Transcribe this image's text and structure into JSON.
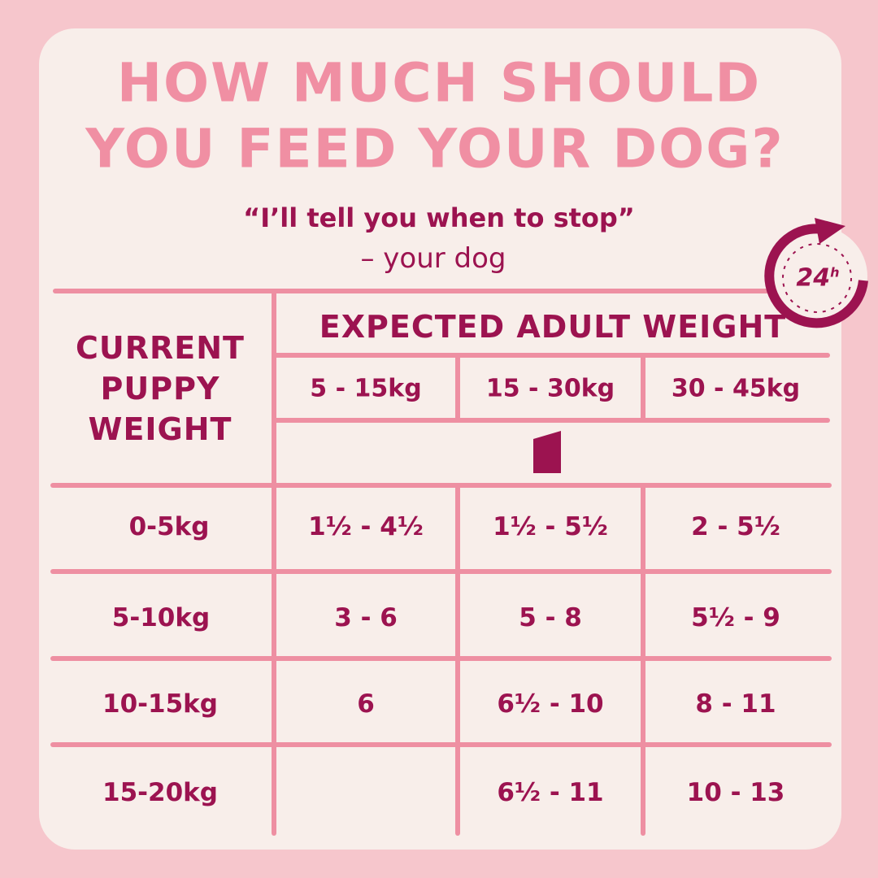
{
  "header": {
    "title_lines": [
      "HOW MUCH SHOULD",
      "YOU FEED YOUR DOG?"
    ],
    "quote": "“I’ll tell you when to stop”",
    "attribution": "– your dog",
    "badge": {
      "number": "24",
      "unit": "h"
    }
  },
  "table": {
    "row_header_lines": [
      "CURRENT",
      "PUPPY",
      "WEIGHT"
    ],
    "column_group": "EXPECTED ADULT WEIGHT",
    "columns": [
      "5 - 15kg",
      "15 - 30kg",
      "30 - 45kg"
    ],
    "rows": [
      [
        "0-5kg",
        "1½ - 4½",
        "1½ - 5½",
        "2 - 5½"
      ],
      [
        "5-10kg",
        "3 - 6",
        "5 - 8",
        "5½ - 9"
      ],
      [
        "10-15kg",
        "6",
        "6½ - 10",
        "8 - 11"
      ],
      [
        "15-20kg",
        null,
        "6½ - 11",
        "10 - 13"
      ]
    ]
  }
}
